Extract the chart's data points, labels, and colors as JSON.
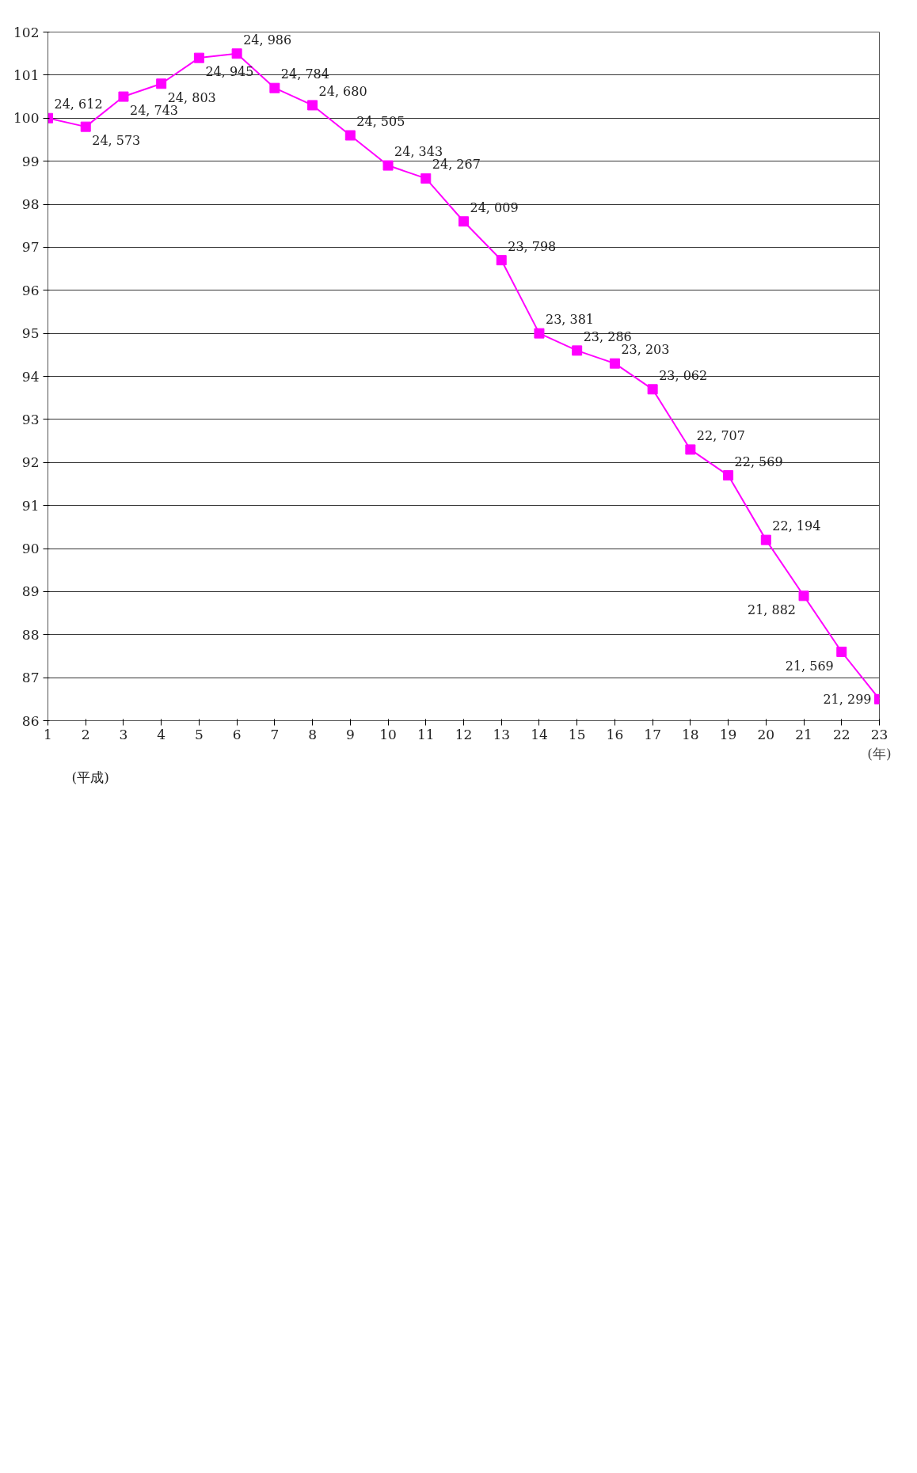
{
  "chart_data": {
    "type": "line",
    "xlabel": "(年)",
    "annotations": [
      "(平成)",
      {
        "text": "24, 612",
        "x": 1,
        "y": 100.0
      },
      {
        "text": "24, 573",
        "x": 2,
        "y": 99.8
      },
      {
        "text": "24, 743",
        "x": 3,
        "y": 100.5
      },
      {
        "text": "24, 803",
        "x": 4,
        "y": 100.8
      },
      {
        "text": "24, 945",
        "x": 5,
        "y": 101.4
      },
      {
        "text": "24, 986",
        "x": 6,
        "y": 101.5
      },
      {
        "text": "24, 784",
        "x": 7,
        "y": 100.7
      },
      {
        "text": "24, 680",
        "x": 8,
        "y": 100.3
      },
      {
        "text": "24, 505",
        "x": 9,
        "y": 99.6
      },
      {
        "text": "24, 343",
        "x": 10,
        "y": 98.9
      },
      {
        "text": "24, 267",
        "x": 11,
        "y": 98.6
      },
      {
        "text": "24, 009",
        "x": 12,
        "y": 97.6
      },
      {
        "text": "23, 798",
        "x": 13,
        "y": 96.7
      },
      {
        "text": "23, 381",
        "x": 14,
        "y": 95.0
      },
      {
        "text": "23, 286",
        "x": 15,
        "y": 94.6
      },
      {
        "text": "23, 203",
        "x": 16,
        "y": 94.3
      },
      {
        "text": "23, 062",
        "x": 17,
        "y": 93.7
      },
      {
        "text": "22, 707",
        "x": 18,
        "y": 92.3
      },
      {
        "text": "22, 569",
        "x": 19,
        "y": 91.7
      },
      {
        "text": "22, 194",
        "x": 20,
        "y": 90.2
      },
      {
        "text": "21, 882",
        "x": 21,
        "y": 88.9
      },
      {
        "text": "21, 569",
        "x": 22,
        "y": 87.6
      },
      {
        "text": "21, 299",
        "x": 23,
        "y": 86.5
      }
    ],
    "x": [
      1,
      2,
      3,
      4,
      5,
      6,
      7,
      8,
      9,
      10,
      11,
      12,
      13,
      14,
      15,
      16,
      17,
      18,
      19,
      20,
      21,
      22,
      23
    ],
    "series": [
      {
        "color": "#ff00ff",
        "values": [
          100.0,
          99.8,
          100.5,
          100.8,
          101.4,
          101.5,
          100.7,
          100.3,
          99.6,
          98.9,
          98.6,
          97.6,
          96.7,
          95.0,
          94.6,
          94.3,
          93.7,
          92.3,
          91.7,
          90.2,
          88.9,
          87.6,
          86.5
        ]
      }
    ],
    "xlim": [
      1,
      23
    ],
    "xticks": [
      1,
      2,
      3,
      4,
      5,
      6,
      7,
      8,
      9,
      10,
      11,
      12,
      13,
      14,
      15,
      16,
      17,
      18,
      19,
      20,
      21,
      22,
      23
    ],
    "ylim": [
      86,
      102
    ],
    "yticks": [
      86,
      87,
      88,
      89,
      90,
      91,
      92,
      93,
      94,
      95,
      96,
      97,
      98,
      99,
      100,
      101,
      102
    ],
    "grid": "y",
    "marker": "square",
    "line_style": "solid"
  }
}
